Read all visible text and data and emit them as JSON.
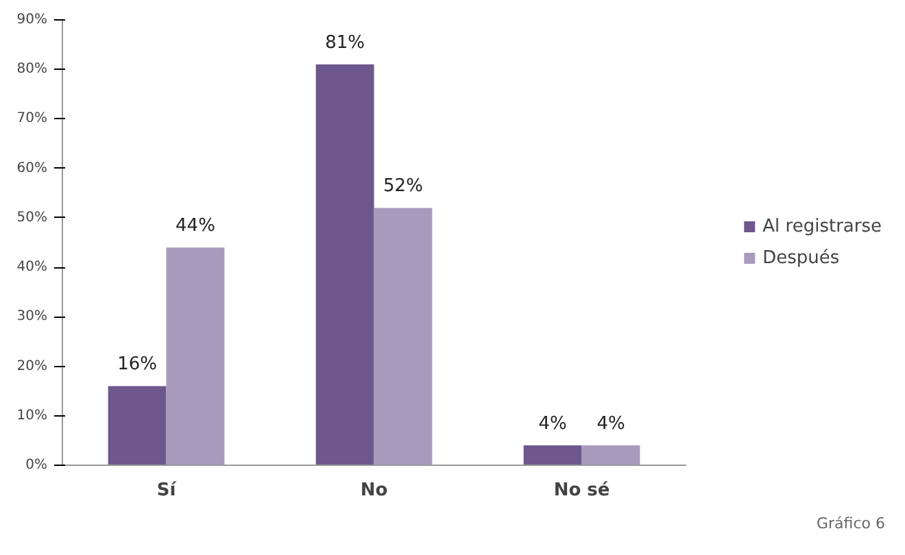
{
  "chart_data": {
    "type": "bar",
    "categories": [
      "Sí",
      "No",
      "No sé"
    ],
    "series": [
      {
        "name": "Al registrarse",
        "color": "#6e578c",
        "values": [
          16,
          81,
          4
        ],
        "value_labels": [
          "16%",
          "81%",
          "4%"
        ]
      },
      {
        "name": "Después",
        "color": "#a89abd",
        "values": [
          44,
          52,
          4
        ],
        "value_labels": [
          "44%",
          "52%",
          "4%"
        ]
      }
    ],
    "ylim": [
      0,
      90
    ],
    "yticks": [
      {
        "value": 0,
        "label": "0%"
      },
      {
        "value": 10,
        "label": "10%"
      },
      {
        "value": 20,
        "label": "20%"
      },
      {
        "value": 30,
        "label": "30%"
      },
      {
        "value": 40,
        "label": "40%"
      },
      {
        "value": 50,
        "label": "50%"
      },
      {
        "value": 60,
        "label": "60%"
      },
      {
        "value": 70,
        "label": "70%"
      },
      {
        "value": 80,
        "label": "80%"
      },
      {
        "value": 90,
        "label": "90%"
      }
    ],
    "grid": false,
    "legend": "right",
    "annotations": [
      "Gráfico 6"
    ]
  }
}
